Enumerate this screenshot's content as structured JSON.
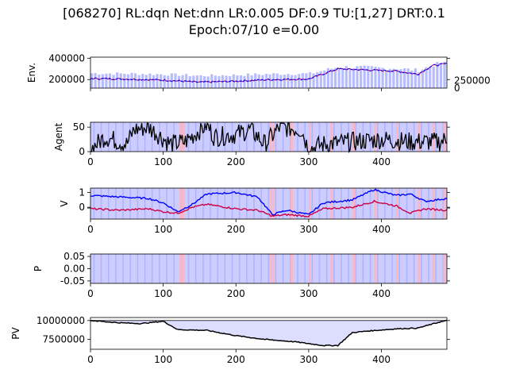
{
  "figure": {
    "title_line1": "[068270] RL:dqn Net:dnn LR:0.005 DF:0.9 TU:[1,27] DRT:0.1",
    "title_line2": "Epoch:07/10 e=0.00"
  },
  "colors": {
    "buy": "#ffb6c1",
    "sell": "#aab0ff",
    "hold_bg": "#ccccff",
    "blue_line": "#0000ff",
    "red_line": "#cc0044",
    "black_line": "#000000",
    "pv_fill": "#ddddff"
  },
  "chart_data": [
    {
      "type": "line",
      "panel": "env",
      "ylabel": "Env.",
      "xlim": [
        0,
        490
      ],
      "ylim": [
        120000,
        410000
      ],
      "yticks": [
        "200000",
        "400000"
      ],
      "right_ylim": [
        0,
        1050000
      ],
      "right_yticks": [
        "0",
        "250000"
      ],
      "series": [
        {
          "values_at_x": [
            0,
            50,
            100,
            150,
            200,
            250,
            300,
            340,
            380,
            420,
            450,
            470,
            490
          ],
          "values": [
            210000,
            205000,
            195000,
            175000,
            185000,
            200000,
            205000,
            300000,
            290000,
            280000,
            250000,
            330000,
            350000
          ]
        }
      ],
      "volume_bars": "blue bars shown under price line"
    },
    {
      "type": "line",
      "panel": "agent",
      "ylabel": "Agent",
      "xlim": [
        0,
        490
      ],
      "ylim": [
        0,
        60
      ],
      "yticks": [
        "0",
        "50"
      ],
      "xticks": [
        "0",
        "100",
        "200",
        "300",
        "400"
      ],
      "series": [
        {
          "values_at_x": [
            0,
            20,
            50,
            60,
            80,
            110,
            130,
            160,
            170,
            200,
            220,
            240,
            260,
            290,
            300,
            320,
            360,
            400,
            440,
            480,
            490
          ],
          "values": [
            5,
            30,
            15,
            45,
            50,
            15,
            20,
            55,
            30,
            35,
            45,
            15,
            50,
            45,
            5,
            15,
            20,
            25,
            20,
            20,
            25
          ]
        }
      ]
    },
    {
      "type": "line",
      "panel": "value",
      "ylabel": "V",
      "xlim": [
        0,
        490
      ],
      "ylim": [
        -0.8,
        1.3
      ],
      "yticks": [
        "-0",
        "0",
        "1"
      ],
      "xticks": [
        "0",
        "100",
        "200",
        "300",
        "400"
      ],
      "series": [
        {
          "name": "",
          "color": "blue",
          "values_at_x": [
            0,
            40,
            80,
            100,
            120,
            140,
            160,
            200,
            230,
            250,
            270,
            300,
            320,
            360,
            390,
            420,
            440,
            460,
            490
          ],
          "values": [
            0.8,
            0.7,
            0.6,
            0.3,
            -0.3,
            0.2,
            0.9,
            1.0,
            0.7,
            -0.5,
            -0.2,
            -0.5,
            0.3,
            0.5,
            1.2,
            0.8,
            0.9,
            0.4,
            0.6
          ]
        },
        {
          "name": "",
          "color": "red",
          "values_at_x": [
            0,
            40,
            80,
            100,
            120,
            140,
            160,
            200,
            230,
            250,
            270,
            300,
            320,
            360,
            390,
            420,
            440,
            460,
            490
          ],
          "values": [
            -0.1,
            -0.2,
            -0.1,
            -0.3,
            -0.4,
            0.0,
            0.2,
            -0.1,
            -0.2,
            -0.6,
            -0.5,
            -0.6,
            -0.1,
            0.0,
            0.4,
            0.1,
            -0.4,
            -0.1,
            -0.2
          ]
        }
      ]
    },
    {
      "type": "line",
      "panel": "policy",
      "ylabel": "P",
      "xlim": [
        0,
        490
      ],
      "ylim": [
        -0.06,
        0.06
      ],
      "yticks": [
        "0.05",
        "0.00",
        "-0.05"
      ],
      "xticks": [
        "0",
        "100",
        "200",
        "300",
        "400"
      ]
    },
    {
      "type": "area",
      "panel": "pv",
      "ylabel": "PV",
      "xlim": [
        0,
        490
      ],
      "ylim": [
        6200000,
        10400000
      ],
      "baseline": 10000000,
      "yticks": [
        "10000000",
        "7500000"
      ],
      "xticks": [
        "0",
        "100",
        "200",
        "300",
        "400"
      ],
      "series": [
        {
          "values_at_x": [
            0,
            40,
            70,
            100,
            120,
            160,
            200,
            240,
            280,
            320,
            340,
            360,
            380,
            420,
            450,
            480,
            490
          ],
          "values": [
            10000000,
            9700000,
            9600000,
            9900000,
            8800000,
            8700000,
            8000000,
            7500000,
            7200000,
            6700000,
            6700000,
            8400000,
            8600000,
            8900000,
            9000000,
            9800000,
            10000000
          ]
        }
      ]
    }
  ]
}
